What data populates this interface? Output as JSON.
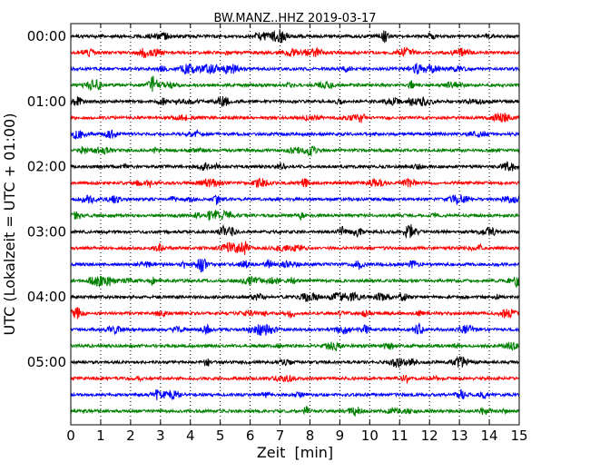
{
  "chart_data": {
    "type": "line",
    "title": "BW.MANZ..HHZ 2019-03-17",
    "xlabel": "Zeit  [min]",
    "ylabel": "UTC (Lokalzeit = UTC + 01:00)",
    "xlim": [
      0,
      15
    ],
    "x_ticks": [
      "0",
      "1",
      "2",
      "3",
      "4",
      "5",
      "6",
      "7",
      "8",
      "9",
      "10",
      "11",
      "12",
      "13",
      "14",
      "15"
    ],
    "y_tick_labels": [
      "00:00",
      "01:00",
      "02:00",
      "03:00",
      "04:00",
      "05:00"
    ],
    "trace_interval_min": 15,
    "trace_count": 24,
    "trace_colors": [
      "#000000",
      "#ff0000",
      "#0000ff",
      "#008000"
    ],
    "grid": "vertical dotted at each minute",
    "series": [
      {
        "start": "00:00",
        "color": "#000000"
      },
      {
        "start": "00:15",
        "color": "#ff0000"
      },
      {
        "start": "00:30",
        "color": "#0000ff"
      },
      {
        "start": "00:45",
        "color": "#008000"
      },
      {
        "start": "01:00",
        "color": "#000000"
      },
      {
        "start": "01:15",
        "color": "#ff0000"
      },
      {
        "start": "01:30",
        "color": "#0000ff"
      },
      {
        "start": "01:45",
        "color": "#008000"
      },
      {
        "start": "02:00",
        "color": "#000000"
      },
      {
        "start": "02:15",
        "color": "#ff0000"
      },
      {
        "start": "02:30",
        "color": "#0000ff"
      },
      {
        "start": "02:45",
        "color": "#008000"
      },
      {
        "start": "03:00",
        "color": "#000000"
      },
      {
        "start": "03:15",
        "color": "#ff0000"
      },
      {
        "start": "03:30",
        "color": "#0000ff"
      },
      {
        "start": "03:45",
        "color": "#008000"
      },
      {
        "start": "04:00",
        "color": "#000000"
      },
      {
        "start": "04:15",
        "color": "#ff0000"
      },
      {
        "start": "04:30",
        "color": "#0000ff"
      },
      {
        "start": "04:45",
        "color": "#008000"
      },
      {
        "start": "05:00",
        "color": "#000000"
      },
      {
        "start": "05:15",
        "color": "#ff0000"
      },
      {
        "start": "05:30",
        "color": "#0000ff"
      },
      {
        "start": "05:45",
        "color": "#008000"
      }
    ]
  }
}
